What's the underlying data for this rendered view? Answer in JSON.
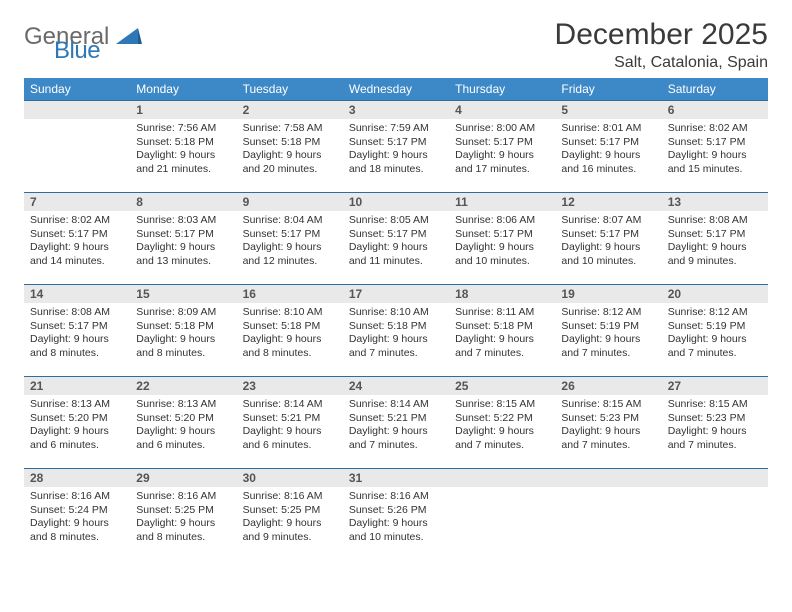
{
  "brand": {
    "word1": "General",
    "word2": "Blue",
    "sail_color": "#2e78b7"
  },
  "title": "December 2025",
  "location": "Salt, Catalonia, Spain",
  "weekdays": [
    "Sunday",
    "Monday",
    "Tuesday",
    "Wednesday",
    "Thursday",
    "Friday",
    "Saturday"
  ],
  "colors": {
    "header_bg": "#3d88c7",
    "header_text": "#ffffff",
    "row_border": "#2e6da4",
    "daynum_bg": "#e9e9e9",
    "text": "#333333"
  },
  "weeks": [
    [
      {
        "n": "",
        "lines": []
      },
      {
        "n": "1",
        "lines": [
          "Sunrise: 7:56 AM",
          "Sunset: 5:18 PM",
          "Daylight: 9 hours",
          "and 21 minutes."
        ]
      },
      {
        "n": "2",
        "lines": [
          "Sunrise: 7:58 AM",
          "Sunset: 5:18 PM",
          "Daylight: 9 hours",
          "and 20 minutes."
        ]
      },
      {
        "n": "3",
        "lines": [
          "Sunrise: 7:59 AM",
          "Sunset: 5:17 PM",
          "Daylight: 9 hours",
          "and 18 minutes."
        ]
      },
      {
        "n": "4",
        "lines": [
          "Sunrise: 8:00 AM",
          "Sunset: 5:17 PM",
          "Daylight: 9 hours",
          "and 17 minutes."
        ]
      },
      {
        "n": "5",
        "lines": [
          "Sunrise: 8:01 AM",
          "Sunset: 5:17 PM",
          "Daylight: 9 hours",
          "and 16 minutes."
        ]
      },
      {
        "n": "6",
        "lines": [
          "Sunrise: 8:02 AM",
          "Sunset: 5:17 PM",
          "Daylight: 9 hours",
          "and 15 minutes."
        ]
      }
    ],
    [
      {
        "n": "7",
        "lines": [
          "Sunrise: 8:02 AM",
          "Sunset: 5:17 PM",
          "Daylight: 9 hours",
          "and 14 minutes."
        ]
      },
      {
        "n": "8",
        "lines": [
          "Sunrise: 8:03 AM",
          "Sunset: 5:17 PM",
          "Daylight: 9 hours",
          "and 13 minutes."
        ]
      },
      {
        "n": "9",
        "lines": [
          "Sunrise: 8:04 AM",
          "Sunset: 5:17 PM",
          "Daylight: 9 hours",
          "and 12 minutes."
        ]
      },
      {
        "n": "10",
        "lines": [
          "Sunrise: 8:05 AM",
          "Sunset: 5:17 PM",
          "Daylight: 9 hours",
          "and 11 minutes."
        ]
      },
      {
        "n": "11",
        "lines": [
          "Sunrise: 8:06 AM",
          "Sunset: 5:17 PM",
          "Daylight: 9 hours",
          "and 10 minutes."
        ]
      },
      {
        "n": "12",
        "lines": [
          "Sunrise: 8:07 AM",
          "Sunset: 5:17 PM",
          "Daylight: 9 hours",
          "and 10 minutes."
        ]
      },
      {
        "n": "13",
        "lines": [
          "Sunrise: 8:08 AM",
          "Sunset: 5:17 PM",
          "Daylight: 9 hours",
          "and 9 minutes."
        ]
      }
    ],
    [
      {
        "n": "14",
        "lines": [
          "Sunrise: 8:08 AM",
          "Sunset: 5:17 PM",
          "Daylight: 9 hours",
          "and 8 minutes."
        ]
      },
      {
        "n": "15",
        "lines": [
          "Sunrise: 8:09 AM",
          "Sunset: 5:18 PM",
          "Daylight: 9 hours",
          "and 8 minutes."
        ]
      },
      {
        "n": "16",
        "lines": [
          "Sunrise: 8:10 AM",
          "Sunset: 5:18 PM",
          "Daylight: 9 hours",
          "and 8 minutes."
        ]
      },
      {
        "n": "17",
        "lines": [
          "Sunrise: 8:10 AM",
          "Sunset: 5:18 PM",
          "Daylight: 9 hours",
          "and 7 minutes."
        ]
      },
      {
        "n": "18",
        "lines": [
          "Sunrise: 8:11 AM",
          "Sunset: 5:18 PM",
          "Daylight: 9 hours",
          "and 7 minutes."
        ]
      },
      {
        "n": "19",
        "lines": [
          "Sunrise: 8:12 AM",
          "Sunset: 5:19 PM",
          "Daylight: 9 hours",
          "and 7 minutes."
        ]
      },
      {
        "n": "20",
        "lines": [
          "Sunrise: 8:12 AM",
          "Sunset: 5:19 PM",
          "Daylight: 9 hours",
          "and 7 minutes."
        ]
      }
    ],
    [
      {
        "n": "21",
        "lines": [
          "Sunrise: 8:13 AM",
          "Sunset: 5:20 PM",
          "Daylight: 9 hours",
          "and 6 minutes."
        ]
      },
      {
        "n": "22",
        "lines": [
          "Sunrise: 8:13 AM",
          "Sunset: 5:20 PM",
          "Daylight: 9 hours",
          "and 6 minutes."
        ]
      },
      {
        "n": "23",
        "lines": [
          "Sunrise: 8:14 AM",
          "Sunset: 5:21 PM",
          "Daylight: 9 hours",
          "and 6 minutes."
        ]
      },
      {
        "n": "24",
        "lines": [
          "Sunrise: 8:14 AM",
          "Sunset: 5:21 PM",
          "Daylight: 9 hours",
          "and 7 minutes."
        ]
      },
      {
        "n": "25",
        "lines": [
          "Sunrise: 8:15 AM",
          "Sunset: 5:22 PM",
          "Daylight: 9 hours",
          "and 7 minutes."
        ]
      },
      {
        "n": "26",
        "lines": [
          "Sunrise: 8:15 AM",
          "Sunset: 5:23 PM",
          "Daylight: 9 hours",
          "and 7 minutes."
        ]
      },
      {
        "n": "27",
        "lines": [
          "Sunrise: 8:15 AM",
          "Sunset: 5:23 PM",
          "Daylight: 9 hours",
          "and 7 minutes."
        ]
      }
    ],
    [
      {
        "n": "28",
        "lines": [
          "Sunrise: 8:16 AM",
          "Sunset: 5:24 PM",
          "Daylight: 9 hours",
          "and 8 minutes."
        ]
      },
      {
        "n": "29",
        "lines": [
          "Sunrise: 8:16 AM",
          "Sunset: 5:25 PM",
          "Daylight: 9 hours",
          "and 8 minutes."
        ]
      },
      {
        "n": "30",
        "lines": [
          "Sunrise: 8:16 AM",
          "Sunset: 5:25 PM",
          "Daylight: 9 hours",
          "and 9 minutes."
        ]
      },
      {
        "n": "31",
        "lines": [
          "Sunrise: 8:16 AM",
          "Sunset: 5:26 PM",
          "Daylight: 9 hours",
          "and 10 minutes."
        ]
      },
      {
        "n": "",
        "lines": []
      },
      {
        "n": "",
        "lines": []
      },
      {
        "n": "",
        "lines": []
      }
    ]
  ]
}
